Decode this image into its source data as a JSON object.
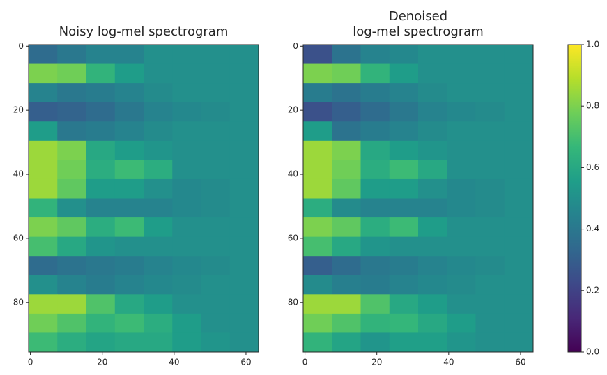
{
  "chart_data": [
    {
      "type": "heatmap",
      "title": [
        "Noisy log-mel spectrogram"
      ],
      "colormap": "viridis",
      "x": [
        3.5,
        11.5,
        19.5,
        27.5,
        35.5,
        43.5,
        51.5,
        59.5
      ],
      "y": [
        2.5,
        8.5,
        14.5,
        20.5,
        26.5,
        32.5,
        38.5,
        44.5,
        50.5,
        56.5,
        62.5,
        68.5,
        74.5,
        80.5,
        86.5,
        92.5
      ],
      "values": [
        [
          0.35,
          0.4,
          0.45,
          0.45,
          0.5,
          0.5,
          0.5,
          0.5
        ],
        [
          0.8,
          0.78,
          0.65,
          0.55,
          0.5,
          0.5,
          0.5,
          0.5
        ],
        [
          0.45,
          0.4,
          0.42,
          0.45,
          0.48,
          0.5,
          0.5,
          0.5
        ],
        [
          0.3,
          0.32,
          0.35,
          0.4,
          0.45,
          0.47,
          0.48,
          0.5
        ],
        [
          0.55,
          0.4,
          0.42,
          0.45,
          0.48,
          0.5,
          0.5,
          0.5
        ],
        [
          0.85,
          0.8,
          0.6,
          0.55,
          0.52,
          0.5,
          0.5,
          0.5
        ],
        [
          0.85,
          0.78,
          0.62,
          0.68,
          0.62,
          0.5,
          0.5,
          0.5
        ],
        [
          0.85,
          0.75,
          0.55,
          0.55,
          0.5,
          0.47,
          0.48,
          0.5
        ],
        [
          0.65,
          0.5,
          0.45,
          0.45,
          0.45,
          0.47,
          0.48,
          0.5
        ],
        [
          0.8,
          0.75,
          0.62,
          0.68,
          0.55,
          0.5,
          0.5,
          0.5
        ],
        [
          0.7,
          0.6,
          0.52,
          0.5,
          0.5,
          0.5,
          0.5,
          0.5
        ],
        [
          0.35,
          0.38,
          0.4,
          0.42,
          0.45,
          0.47,
          0.48,
          0.5
        ],
        [
          0.5,
          0.45,
          0.42,
          0.45,
          0.47,
          0.48,
          0.5,
          0.5
        ],
        [
          0.85,
          0.85,
          0.72,
          0.6,
          0.55,
          0.5,
          0.5,
          0.5
        ],
        [
          0.78,
          0.72,
          0.65,
          0.68,
          0.62,
          0.55,
          0.5,
          0.5
        ],
        [
          0.68,
          0.62,
          0.58,
          0.6,
          0.6,
          0.55,
          0.52,
          0.5
        ]
      ],
      "xlim": [
        -0.5,
        63.5
      ],
      "xticks": [
        0,
        20,
        40,
        60
      ],
      "ylim": [
        95.5,
        -0.5
      ],
      "yticks": [
        0,
        20,
        40,
        60,
        80
      ]
    },
    {
      "type": "heatmap",
      "title": [
        "Denoised",
        "log-mel spectrogram"
      ],
      "colormap": "viridis",
      "x": [
        3.5,
        11.5,
        19.5,
        27.5,
        35.5,
        43.5,
        51.5,
        59.5
      ],
      "y": [
        2.5,
        8.5,
        14.5,
        20.5,
        26.5,
        32.5,
        38.5,
        44.5,
        50.5,
        56.5,
        62.5,
        68.5,
        74.5,
        80.5,
        86.5,
        92.5
      ],
      "values": [
        [
          0.25,
          0.38,
          0.45,
          0.47,
          0.5,
          0.5,
          0.5,
          0.5
        ],
        [
          0.8,
          0.78,
          0.65,
          0.55,
          0.5,
          0.5,
          0.5,
          0.5
        ],
        [
          0.42,
          0.38,
          0.42,
          0.45,
          0.48,
          0.5,
          0.5,
          0.5
        ],
        [
          0.25,
          0.3,
          0.35,
          0.4,
          0.45,
          0.47,
          0.48,
          0.5
        ],
        [
          0.55,
          0.38,
          0.42,
          0.45,
          0.48,
          0.5,
          0.5,
          0.5
        ],
        [
          0.85,
          0.8,
          0.6,
          0.55,
          0.52,
          0.5,
          0.5,
          0.5
        ],
        [
          0.85,
          0.78,
          0.62,
          0.68,
          0.6,
          0.5,
          0.5,
          0.5
        ],
        [
          0.85,
          0.75,
          0.55,
          0.55,
          0.5,
          0.47,
          0.48,
          0.5
        ],
        [
          0.62,
          0.48,
          0.45,
          0.45,
          0.45,
          0.47,
          0.48,
          0.5
        ],
        [
          0.8,
          0.75,
          0.62,
          0.68,
          0.55,
          0.5,
          0.5,
          0.5
        ],
        [
          0.7,
          0.6,
          0.52,
          0.5,
          0.5,
          0.5,
          0.5,
          0.5
        ],
        [
          0.3,
          0.35,
          0.4,
          0.42,
          0.45,
          0.47,
          0.48,
          0.5
        ],
        [
          0.48,
          0.43,
          0.42,
          0.45,
          0.47,
          0.48,
          0.5,
          0.5
        ],
        [
          0.85,
          0.85,
          0.72,
          0.6,
          0.55,
          0.5,
          0.5,
          0.5
        ],
        [
          0.78,
          0.72,
          0.65,
          0.66,
          0.6,
          0.55,
          0.5,
          0.5
        ],
        [
          0.65,
          0.58,
          0.52,
          0.56,
          0.56,
          0.52,
          0.5,
          0.5
        ]
      ],
      "xlim": [
        -0.5,
        63.5
      ],
      "xticks": [
        0,
        20,
        40,
        60
      ],
      "ylim": [
        95.5,
        -0.5
      ],
      "yticks": [
        0,
        20,
        40,
        60,
        80
      ],
      "colorbar": {
        "lim": [
          0,
          1
        ],
        "ticks": [
          {
            "value": 0,
            "label": "0.0"
          },
          0.2,
          0.4,
          0.6,
          0.8,
          {
            "value": 1,
            "label": "1.0"
          }
        ]
      }
    }
  ]
}
